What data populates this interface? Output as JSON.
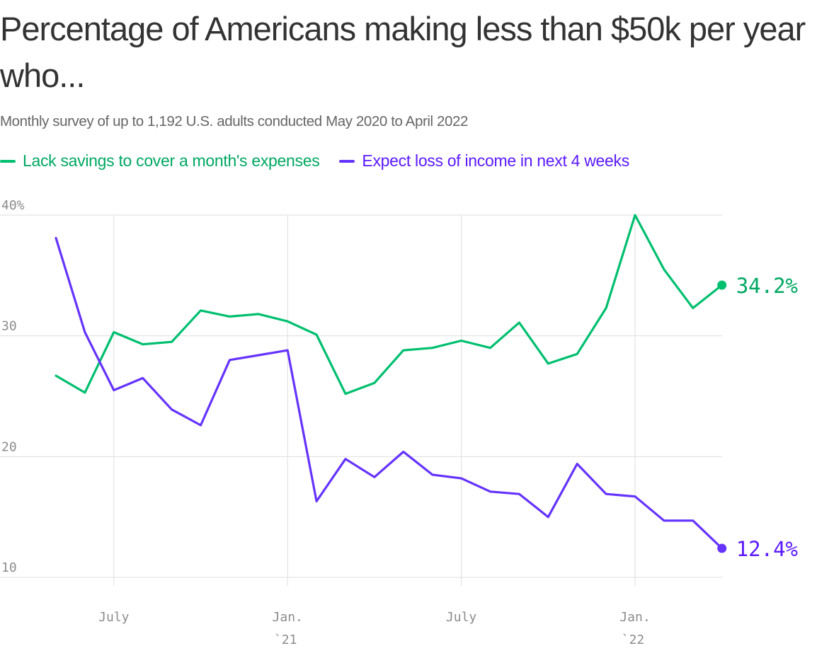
{
  "chart_data": {
    "type": "line",
    "title": "Percentage of Americans making less than $50k per year who...",
    "subtitle": "Monthly survey of up to 1,192 U.S. adults conducted May 2020 to April 2022",
    "xlabel": "",
    "ylabel": "",
    "ylim": [
      10,
      40
    ],
    "yticks": [
      10,
      20,
      30,
      40
    ],
    "ytick_labels": [
      "10",
      "20",
      "30",
      "40%"
    ],
    "x": [
      "2020-05",
      "2020-06",
      "2020-07",
      "2020-08",
      "2020-09",
      "2020-10",
      "2020-11",
      "2020-12",
      "2021-01",
      "2021-02",
      "2021-03",
      "2021-04",
      "2021-05",
      "2021-06",
      "2021-07",
      "2021-08",
      "2021-09",
      "2021-10",
      "2021-11",
      "2021-12",
      "2022-01",
      "2022-02",
      "2022-03",
      "2022-04"
    ],
    "xticks": [
      {
        "index": 2,
        "label": "July",
        "sublabel": ""
      },
      {
        "index": 8,
        "label": "Jan.",
        "sublabel": "`21"
      },
      {
        "index": 14,
        "label": "July",
        "sublabel": ""
      },
      {
        "index": 20,
        "label": "Jan.",
        "sublabel": "`22"
      }
    ],
    "grid": true,
    "legend_position": "top-left",
    "series": [
      {
        "name": "Lack savings to cover a month's expenses",
        "color": "#00bf6f",
        "label_color": "#00a862",
        "values": [
          26.7,
          25.3,
          30.3,
          29.3,
          29.5,
          32.1,
          31.6,
          31.8,
          31.2,
          30.1,
          25.2,
          26.1,
          28.8,
          29.0,
          29.6,
          29.0,
          31.1,
          27.7,
          28.5,
          32.3,
          40.0,
          35.5,
          32.3,
          34.2
        ],
        "end_label": "34.2%"
      },
      {
        "name": "Expect loss of income in next 4 weeks",
        "color": "#6533ff",
        "label_color": "#5c1aff",
        "values": [
          38.1,
          30.3,
          25.5,
          26.5,
          23.9,
          22.6,
          28.0,
          28.4,
          28.8,
          16.3,
          19.8,
          18.3,
          20.4,
          18.5,
          18.2,
          17.1,
          16.9,
          15.0,
          19.4,
          16.9,
          16.7,
          14.7,
          14.7,
          12.4
        ],
        "end_label": "12.4%"
      }
    ]
  }
}
